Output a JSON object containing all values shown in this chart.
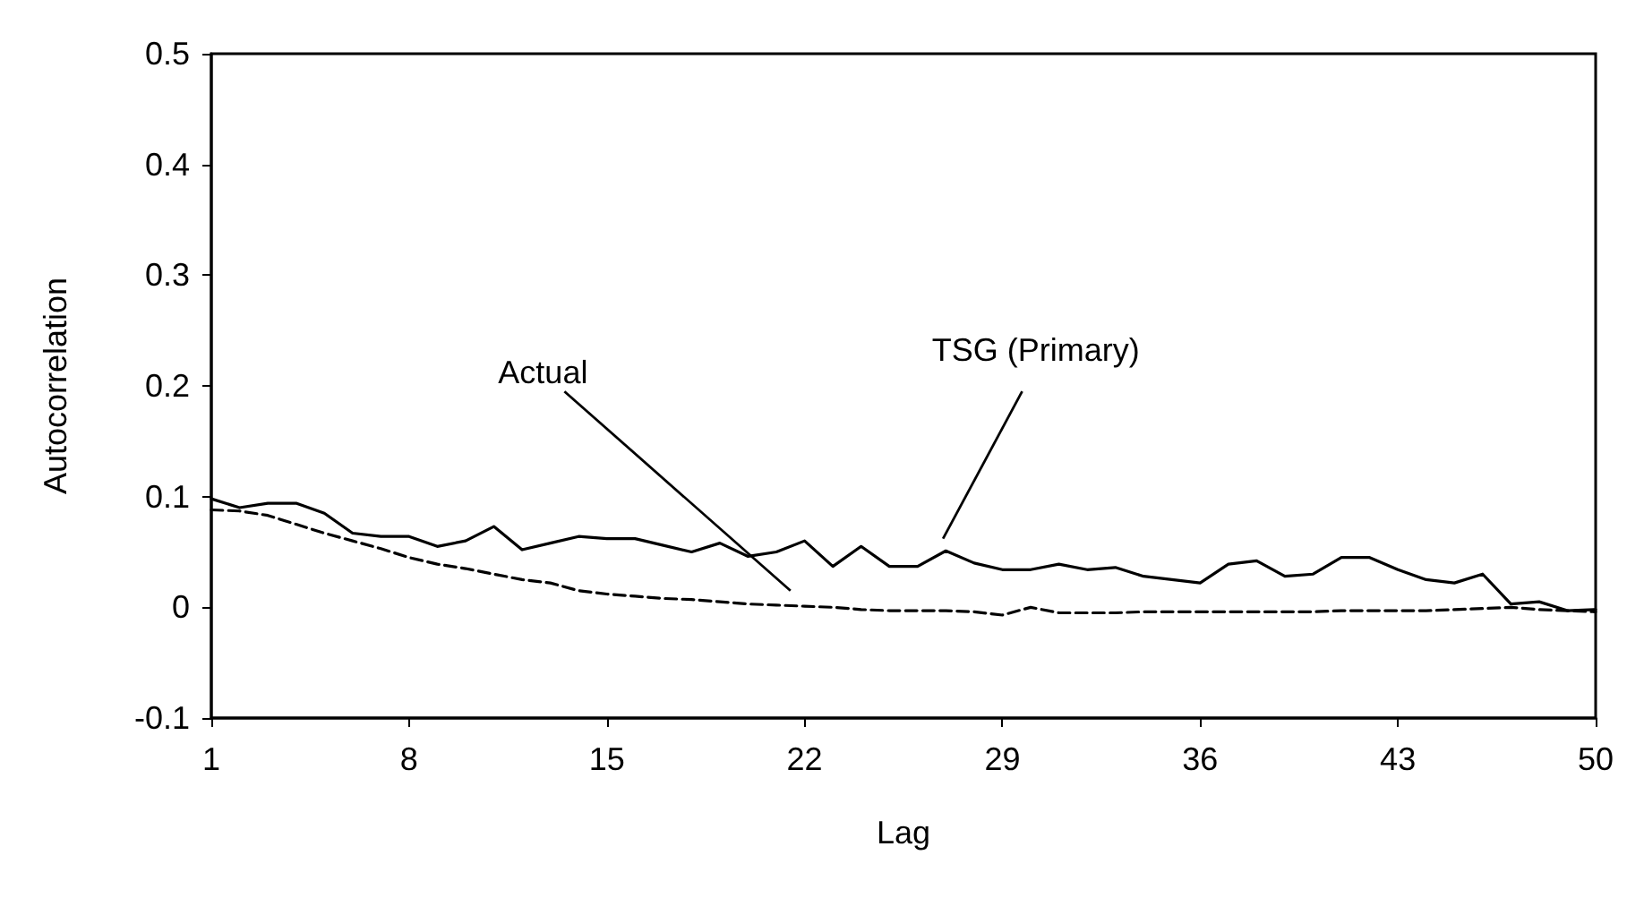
{
  "chart_data": {
    "type": "line",
    "xlabel": "Lag",
    "ylabel": "Autocorrelation",
    "x": [
      1,
      2,
      3,
      4,
      5,
      6,
      7,
      8,
      9,
      10,
      11,
      12,
      13,
      14,
      15,
      16,
      17,
      18,
      19,
      20,
      21,
      22,
      23,
      24,
      25,
      26,
      27,
      28,
      29,
      30,
      31,
      32,
      33,
      34,
      35,
      36,
      37,
      38,
      39,
      40,
      41,
      42,
      43,
      44,
      45,
      46,
      47,
      48,
      49,
      50
    ],
    "series": [
      {
        "name": "Actual",
        "color": "#000000",
        "line_style": "dashed",
        "values": [
          0.088,
          0.087,
          0.083,
          0.075,
          0.067,
          0.06,
          0.053,
          0.045,
          0.039,
          0.035,
          0.03,
          0.025,
          0.022,
          0.015,
          0.012,
          0.01,
          0.008,
          0.007,
          0.005,
          0.003,
          0.002,
          0.001,
          0,
          -0.002,
          -0.003,
          -0.003,
          -0.003,
          -0.004,
          -0.007,
          0,
          -0.005,
          -0.005,
          -0.005,
          -0.004,
          -0.004,
          -0.004,
          -0.004,
          -0.004,
          -0.004,
          -0.004,
          -0.003,
          -0.003,
          -0.003,
          -0.003,
          -0.002,
          -0.001,
          0,
          -0.002,
          -0.003,
          -0.004
        ]
      },
      {
        "name": "TSG (Primary)",
        "color": "#000000",
        "line_style": "solid",
        "values": [
          0.098,
          0.09,
          0.094,
          0.094,
          0.085,
          0.067,
          0.064,
          0.064,
          0.055,
          0.06,
          0.073,
          0.052,
          0.058,
          0.064,
          0.062,
          0.062,
          0.056,
          0.05,
          0.058,
          0.046,
          0.05,
          0.06,
          0.037,
          0.055,
          0.037,
          0.037,
          0.051,
          0.04,
          0.034,
          0.034,
          0.039,
          0.034,
          0.036,
          0.028,
          0.025,
          0.022,
          0.039,
          0.042,
          0.028,
          0.03,
          0.045,
          0.045,
          0.034,
          0.025,
          0.022,
          0.03,
          0.003,
          0.005,
          -0.003,
          -0.002
        ]
      }
    ],
    "xlim": [
      1,
      50
    ],
    "xticks": [
      1,
      8,
      15,
      22,
      29,
      36,
      43,
      50
    ],
    "ylim": [
      -0.1,
      0.5
    ],
    "yticks": [
      -0.1,
      0,
      0.1,
      0.2,
      0.3,
      0.4,
      0.5
    ],
    "grid": false,
    "legend": false,
    "marker": "none"
  }
}
